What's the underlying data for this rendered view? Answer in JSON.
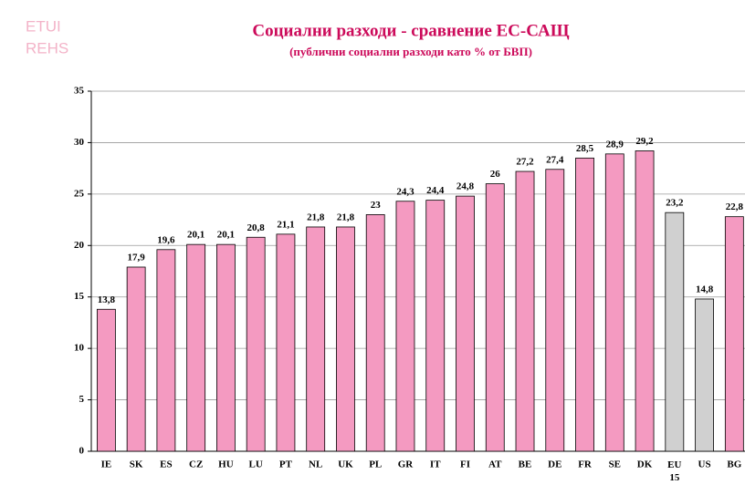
{
  "logo": [
    "ETUI",
    "REHS"
  ],
  "chart_data": {
    "type": "bar",
    "title": "Социални разходи - сравнение ЕС-САЩ",
    "subtitle": "(публични социални разходи като % от БВП)",
    "categories": [
      "IE",
      "SK",
      "ES",
      "CZ",
      "HU",
      "LU",
      "PT",
      "NL",
      "UK",
      "PL",
      "GR",
      "IT",
      "FI",
      "AT",
      "BE",
      "DE",
      "FR",
      "SE",
      "DK",
      "EU 15",
      "US",
      "BG"
    ],
    "values": [
      13.8,
      17.9,
      19.6,
      20.1,
      20.1,
      20.8,
      21.1,
      21.8,
      21.8,
      23,
      24.3,
      24.4,
      24.8,
      26,
      27.2,
      27.4,
      28.5,
      28.9,
      29.2,
      23.2,
      14.8,
      22.8
    ],
    "value_labels": [
      "13,8",
      "17,9",
      "19,6",
      "20,1",
      "20,1",
      "20,8",
      "21,1",
      "21,8",
      "21,8",
      "23",
      "24,3",
      "24,4",
      "24,8",
      "26",
      "27,2",
      "27,4",
      "28,5",
      "28,9",
      "29,2",
      "23,2",
      "14,8",
      "22,8"
    ],
    "colors": [
      "#f49ac1",
      "#f49ac1",
      "#f49ac1",
      "#f49ac1",
      "#f49ac1",
      "#f49ac1",
      "#f49ac1",
      "#f49ac1",
      "#f49ac1",
      "#f49ac1",
      "#f49ac1",
      "#f49ac1",
      "#f49ac1",
      "#f49ac1",
      "#f49ac1",
      "#f49ac1",
      "#f49ac1",
      "#f49ac1",
      "#f49ac1",
      "#d0d0d0",
      "#d0d0d0",
      "#f49ac1"
    ],
    "ylim": [
      0,
      35
    ],
    "yticks": [
      0,
      5,
      10,
      15,
      20,
      25,
      30,
      35
    ],
    "grid": true
  }
}
